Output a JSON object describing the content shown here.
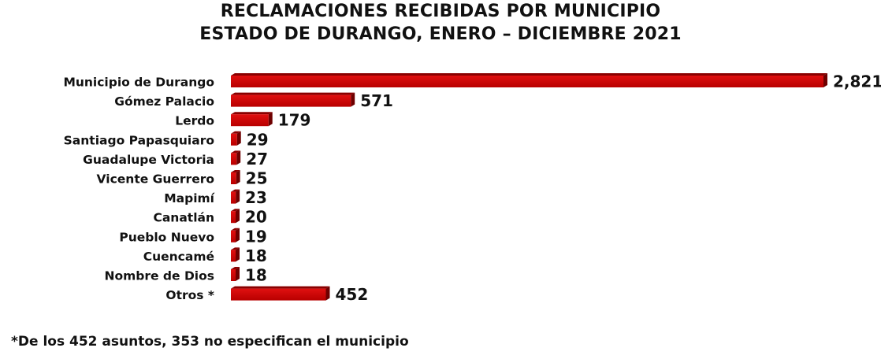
{
  "chart_data": {
    "type": "bar",
    "orientation": "horizontal",
    "title": "RECLAMACIONES RECIBIDAS POR MUNICIPIO",
    "subtitle": "ESTADO DE DURANGO, ENERO – DICIEMBRE 2021",
    "categories": [
      "Municipio de Durango",
      "Gómez Palacio",
      "Lerdo",
      "Santiago Papasquiaro",
      "Guadalupe Victoria",
      "Vicente Guerrero",
      "Mapimí",
      "Canatlán",
      "Pueblo Nuevo",
      "Cuencamé",
      "Nombre de Dios",
      "Otros *"
    ],
    "values": [
      2821,
      571,
      179,
      29,
      27,
      25,
      23,
      20,
      19,
      18,
      18,
      452
    ],
    "value_labels": [
      "2,821",
      "571",
      "179",
      "29",
      "27",
      "25",
      "23",
      "20",
      "19",
      "18",
      "18",
      "452"
    ],
    "xlim": [
      0,
      2821
    ],
    "grid": false,
    "bar_color": "#cc0000"
  },
  "footnote": "*De los 452 asuntos, 353 no especifican el municipio"
}
